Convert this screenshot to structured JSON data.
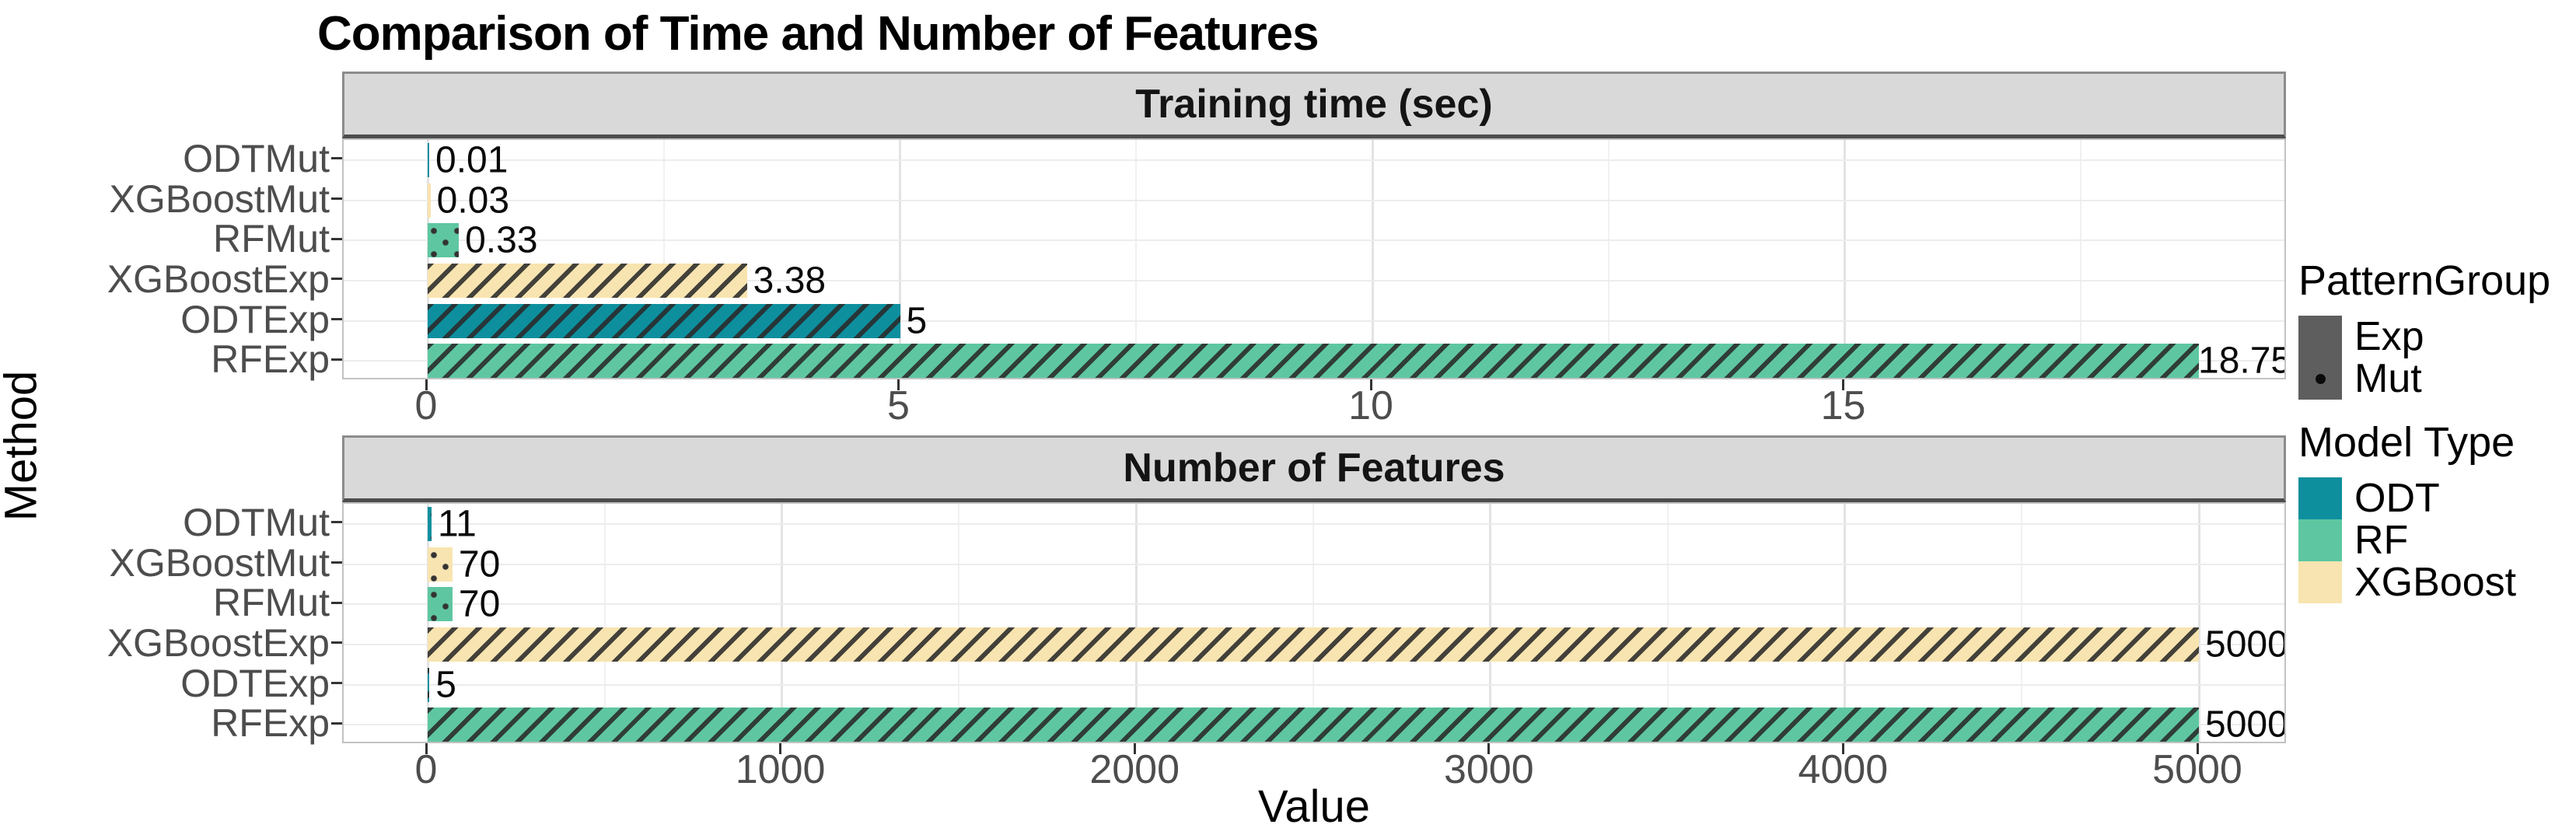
{
  "title": "Comparison of Time and Number of Features",
  "x_axis_title": "Value",
  "y_axis_title": "Method",
  "chart_data": {
    "type": "bar",
    "orientation": "horizontal",
    "title": "Comparison of Time and Number of Features",
    "xlabel": "Value",
    "ylabel": "Method",
    "grid": "major+minor",
    "legend_position": "right",
    "categories_top_to_bottom": [
      "ODTMut",
      "XGBoostMut",
      "RFMut",
      "XGBoostExp",
      "ODTExp",
      "RFExp"
    ],
    "category_model": [
      "ODT",
      "XGBoost",
      "RF",
      "XGBoost",
      "ODT",
      "RF"
    ],
    "category_pattern": [
      "dots",
      "dots",
      "dots",
      "stripes",
      "stripes",
      "stripes"
    ],
    "facets": [
      {
        "title": "Training time (sec)",
        "values": [
          0.01,
          0.03,
          0.33,
          3.38,
          5,
          18.75
        ],
        "bar_labels": [
          "0.01",
          "0.03",
          "0.33",
          "3.38",
          "5",
          "18.75"
        ],
        "ticks": [
          0,
          5,
          10,
          15
        ],
        "tick_labels": [
          "0",
          "5",
          "10",
          "15"
        ],
        "minor_ticks": [
          2.5,
          7.5,
          12.5,
          17.5
        ],
        "xlim": [
          0,
          18.75
        ]
      },
      {
        "title": "Number of Features",
        "values": [
          11,
          70,
          70,
          5000,
          5,
          5000
        ],
        "bar_labels": [
          "11",
          "70",
          "70",
          "5000",
          "5",
          "5000"
        ],
        "ticks": [
          0,
          1000,
          2000,
          3000,
          4000,
          5000
        ],
        "tick_labels": [
          "0",
          "1000",
          "2000",
          "3000",
          "4000",
          "5000"
        ],
        "minor_ticks": [
          500,
          1500,
          2500,
          3500,
          4500
        ],
        "xlim": [
          0,
          5000
        ]
      }
    ],
    "model_colors": {
      "ODT": "#0E8F9E",
      "RF": "#5EC7A1",
      "XGBoost": "#F8E4B0"
    }
  },
  "legend": {
    "pattern_group": {
      "title": "PatternGroup",
      "items": [
        {
          "label": "Exp",
          "pattern": "stripes-solid-key"
        },
        {
          "label": "Mut",
          "pattern": "dot-key"
        }
      ]
    },
    "model_type": {
      "title": "Model Type",
      "items": [
        {
          "label": "ODT",
          "color": "#0E8F9E"
        },
        {
          "label": "RF",
          "color": "#5EC7A1"
        },
        {
          "label": "XGBoost",
          "color": "#F8E4B0"
        }
      ]
    }
  },
  "colors": {
    "stripe_pattern": "#2A2A2A",
    "dot_pattern": "#333333",
    "strip_background": "#D9D9D9",
    "axis_text": "#4D4D4D",
    "legend_key_gray": "#5E5E5E",
    "panel_border": "#C2C2C2"
  }
}
